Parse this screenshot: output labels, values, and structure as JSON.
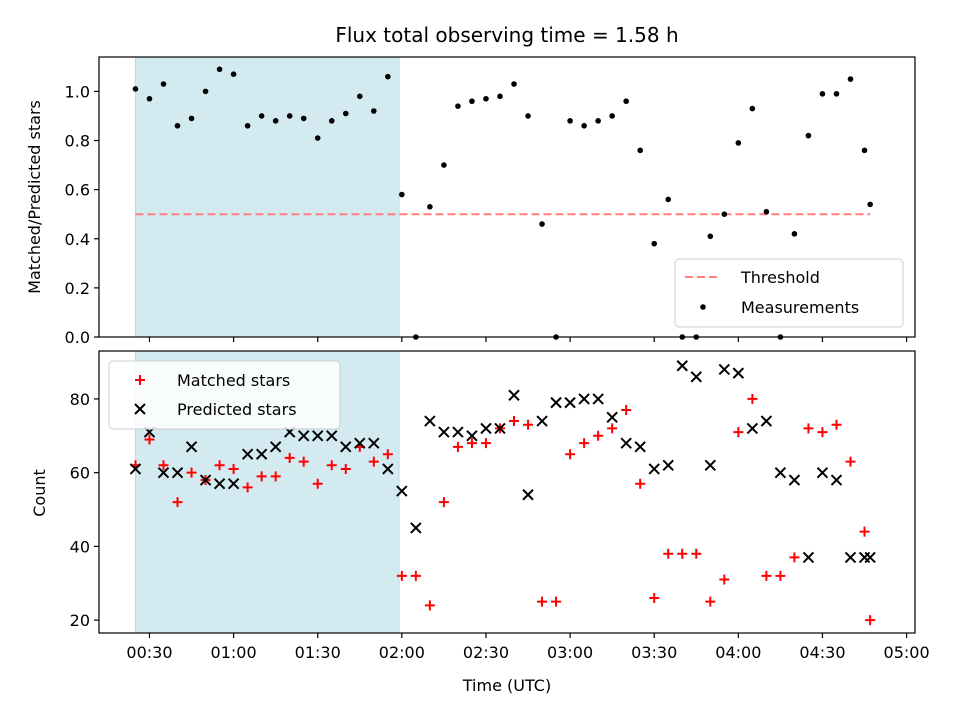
{
  "chart_data": [
    {
      "type": "scatter",
      "title": "Flux total observing time = 1.58 h",
      "ylabel": "Matched/Predicted stars",
      "xlabel": "",
      "xlim": [
        "00:12",
        "05:03"
      ],
      "ylim": [
        0,
        1.14
      ],
      "yticks": [
        0.0,
        0.2,
        0.4,
        0.6,
        0.8,
        1.0
      ],
      "yticklabels": [
        "0.0",
        "0.2",
        "0.4",
        "0.6",
        "0.8",
        "1.0"
      ],
      "shaded_region": {
        "x0": "00:25",
        "x1": "01:59",
        "color": "#d3eaf1"
      },
      "legend": {
        "placement": "lower-right",
        "entries": [
          "Threshold",
          "Measurements"
        ]
      },
      "series": [
        {
          "name": "Threshold",
          "kind": "dashed-line",
          "color": "#ff7f7f",
          "x": [
            "00:25",
            "04:47"
          ],
          "y": [
            0.5,
            0.5
          ]
        },
        {
          "name": "Measurements",
          "kind": "dot",
          "color": "#000000",
          "x": [
            "00:25",
            "00:30",
            "00:35",
            "00:40",
            "00:45",
            "00:50",
            "00:55",
            "01:00",
            "01:05",
            "01:10",
            "01:15",
            "01:20",
            "01:25",
            "01:30",
            "01:35",
            "01:40",
            "01:45",
            "01:50",
            "01:55",
            "02:00",
            "02:05",
            "02:10",
            "02:15",
            "02:20",
            "02:25",
            "02:30",
            "02:35",
            "02:40",
            "02:45",
            "02:50",
            "02:55",
            "03:00",
            "03:05",
            "03:10",
            "03:15",
            "03:20",
            "03:25",
            "03:30",
            "03:35",
            "03:40",
            "03:45",
            "03:50",
            "03:55",
            "04:00",
            "04:05",
            "04:10",
            "04:15",
            "04:20",
            "04:25",
            "04:30",
            "04:35",
            "04:40",
            "04:45",
            "04:47"
          ],
          "y": [
            1.01,
            0.97,
            1.03,
            0.86,
            0.89,
            1.0,
            1.09,
            1.07,
            0.86,
            0.9,
            0.88,
            0.9,
            0.89,
            0.81,
            0.88,
            0.91,
            0.98,
            0.92,
            1.06,
            0.58,
            0.0,
            0.53,
            0.7,
            0.94,
            0.96,
            0.97,
            0.98,
            1.03,
            0.9,
            0.46,
            0.0,
            0.88,
            0.86,
            0.88,
            0.9,
            0.96,
            0.76,
            0.38,
            0.56,
            0.0,
            0.0,
            0.41,
            0.5,
            0.79,
            0.93,
            0.51,
            0.0,
            0.42,
            0.82,
            0.99,
            0.99,
            1.05,
            0.76,
            0.54
          ]
        }
      ]
    },
    {
      "type": "scatter",
      "title": "",
      "ylabel": "Count",
      "xlabel": "Time (UTC)",
      "xlim": [
        "00:12",
        "05:03"
      ],
      "ylim": [
        16.5,
        93
      ],
      "yticks": [
        20,
        40,
        60,
        80
      ],
      "yticklabels": [
        "20",
        "40",
        "60",
        "80"
      ],
      "xticks": [
        "00:30",
        "01:00",
        "01:30",
        "02:00",
        "02:30",
        "03:00",
        "03:30",
        "04:00",
        "04:30",
        "05:00"
      ],
      "shaded_region": {
        "x0": "00:25",
        "x1": "01:59",
        "color": "#d3eaf1"
      },
      "legend": {
        "placement": "upper-left",
        "entries": [
          "Matched stars",
          "Predicted stars"
        ]
      },
      "series": [
        {
          "name": "Matched stars",
          "kind": "plus",
          "color": "#ff0000",
          "x": [
            "00:25",
            "00:30",
            "00:35",
            "00:40",
            "00:45",
            "00:50",
            "00:55",
            "01:00",
            "01:05",
            "01:10",
            "01:15",
            "01:20",
            "01:25",
            "01:30",
            "01:35",
            "01:40",
            "01:45",
            "01:50",
            "01:55",
            "02:00",
            "02:05",
            "02:10",
            "02:15",
            "02:20",
            "02:25",
            "02:30",
            "02:35",
            "02:40",
            "02:45",
            "02:50",
            "02:55",
            "03:00",
            "03:05",
            "03:10",
            "03:15",
            "03:20",
            "03:25",
            "03:30",
            "03:35",
            "03:40",
            "03:45",
            "03:50",
            "03:55",
            "04:00",
            "04:05",
            "04:10",
            "04:15",
            "04:20",
            "04:25",
            "04:30",
            "04:35",
            "04:40",
            "04:45",
            "04:47"
          ],
          "y": [
            62,
            69,
            62,
            52,
            60,
            58,
            62,
            61,
            56,
            59,
            59,
            64,
            63,
            57,
            62,
            61,
            67,
            63,
            65,
            32,
            32,
            24,
            52,
            67,
            68,
            68,
            72,
            74,
            73,
            25,
            25,
            65,
            68,
            70,
            72,
            77,
            57,
            26,
            38,
            38,
            38,
            25,
            31,
            71,
            80,
            32,
            32,
            37,
            72,
            71,
            73,
            63,
            44,
            20
          ]
        },
        {
          "name": "Predicted stars",
          "kind": "x",
          "color": "#000000",
          "x": [
            "00:25",
            "00:30",
            "00:35",
            "00:40",
            "00:45",
            "00:50",
            "00:55",
            "01:00",
            "01:05",
            "01:10",
            "01:15",
            "01:20",
            "01:25",
            "01:30",
            "01:35",
            "01:40",
            "01:45",
            "01:50",
            "01:55",
            "02:00",
            "02:05",
            "02:10",
            "02:15",
            "02:20",
            "02:25",
            "02:30",
            "02:35",
            "02:40",
            "02:45",
            "02:50",
            "02:55",
            "03:00",
            "03:05",
            "03:10",
            "03:15",
            "03:20",
            "03:25",
            "03:30",
            "03:35",
            "03:40",
            "03:45",
            "03:50",
            "03:55",
            "04:00",
            "04:05",
            "04:10",
            "04:15",
            "04:20",
            "04:25",
            "04:30",
            "04:35",
            "04:40",
            "04:45",
            "04:47"
          ],
          "y": [
            61,
            71,
            60,
            60,
            67,
            58,
            57,
            57,
            65,
            65,
            67,
            71,
            70,
            70,
            70,
            67,
            68,
            68,
            61,
            55,
            45,
            74,
            71,
            71,
            70,
            72,
            72,
            81,
            54,
            74,
            79,
            79,
            80,
            80,
            75,
            68,
            67,
            61,
            62,
            89,
            86,
            62,
            88,
            87,
            72,
            74,
            60,
            58,
            37,
            60,
            58,
            37,
            37,
            37
          ]
        }
      ]
    }
  ]
}
